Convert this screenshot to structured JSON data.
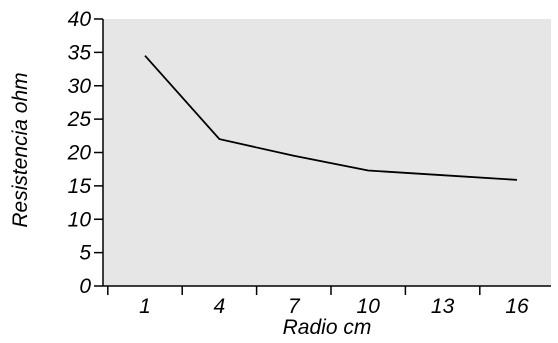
{
  "chart_data": {
    "type": "line",
    "title": "",
    "xlabel": "Radio cm",
    "ylabel": "Resistencia ohm",
    "categories": [
      "1",
      "4",
      "7",
      "10",
      "13",
      "16"
    ],
    "x": [
      1,
      4,
      7,
      10,
      13,
      16
    ],
    "ylim": [
      0,
      40
    ],
    "yticks": [
      0,
      5,
      10,
      15,
      20,
      25,
      30,
      35,
      40
    ],
    "series": [
      {
        "values": [
          34.5,
          22.0,
          19.5,
          17.3,
          16.6,
          15.9
        ]
      }
    ],
    "grid": false,
    "legend": "none",
    "colors": {
      "plot_background": "#e6e6e6",
      "line": "#000000",
      "axis": "#000000"
    }
  }
}
